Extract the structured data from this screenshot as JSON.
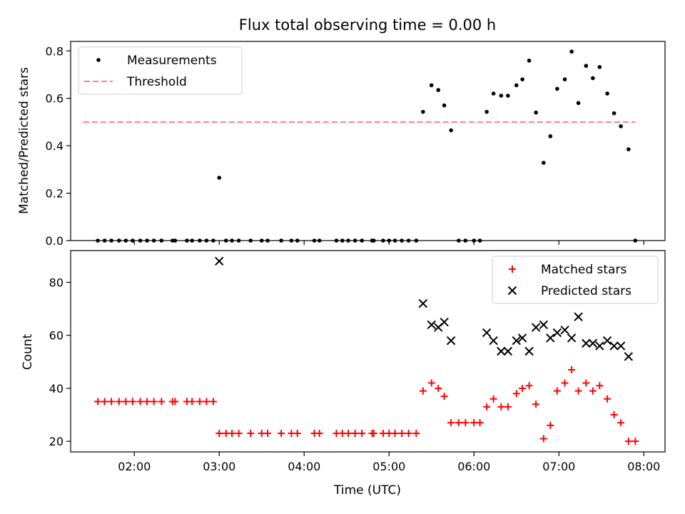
{
  "chart_data": [
    {
      "type": "scatter",
      "title": "Flux total observing time = 0.00 h",
      "xlabel": "",
      "ylabel": "Matched/Predicted stars",
      "xlim_hours": [
        1.25,
        8.25
      ],
      "ylim": [
        0,
        0.84
      ],
      "yticks": [
        0.0,
        0.2,
        0.4,
        0.6,
        0.8
      ],
      "ytick_labels": [
        "0.0",
        "0.2",
        "0.4",
        "0.6",
        "0.8"
      ],
      "legend_position": "top-left",
      "series": [
        {
          "name": "Measurements",
          "kind": "scatter",
          "marker": "dot",
          "color": "#000000",
          "points": [
            [
              1.57,
              0
            ],
            [
              1.65,
              0
            ],
            [
              1.73,
              0
            ],
            [
              1.82,
              0
            ],
            [
              1.9,
              0
            ],
            [
              1.98,
              0
            ],
            [
              2.07,
              0
            ],
            [
              2.15,
              0
            ],
            [
              2.23,
              0
            ],
            [
              2.32,
              0
            ],
            [
              2.45,
              0
            ],
            [
              2.48,
              0
            ],
            [
              2.62,
              0
            ],
            [
              2.68,
              0
            ],
            [
              2.77,
              0
            ],
            [
              2.85,
              0
            ],
            [
              2.93,
              0
            ],
            [
              3.0,
              0.265
            ],
            [
              3.08,
              0
            ],
            [
              3.15,
              0
            ],
            [
              3.23,
              0
            ],
            [
              3.37,
              0
            ],
            [
              3.5,
              0
            ],
            [
              3.57,
              0
            ],
            [
              3.73,
              0
            ],
            [
              3.85,
              0
            ],
            [
              3.92,
              0
            ],
            [
              4.12,
              0
            ],
            [
              4.18,
              0
            ],
            [
              4.38,
              0
            ],
            [
              4.45,
              0
            ],
            [
              4.52,
              0
            ],
            [
              4.6,
              0
            ],
            [
              4.68,
              0
            ],
            [
              4.8,
              0
            ],
            [
              4.82,
              0
            ],
            [
              4.93,
              0
            ],
            [
              5.0,
              0
            ],
            [
              5.07,
              0
            ],
            [
              5.15,
              0
            ],
            [
              5.23,
              0
            ],
            [
              5.32,
              0
            ],
            [
              5.4,
              0.543
            ],
            [
              5.5,
              0.655
            ],
            [
              5.58,
              0.635
            ],
            [
              5.65,
              0.57
            ],
            [
              5.73,
              0.465
            ],
            [
              5.82,
              0
            ],
            [
              5.9,
              0
            ],
            [
              6.0,
              0
            ],
            [
              6.07,
              0
            ],
            [
              6.15,
              0.543
            ],
            [
              6.23,
              0.62
            ],
            [
              6.32,
              0.611
            ],
            [
              6.4,
              0.611
            ],
            [
              6.5,
              0.655
            ],
            [
              6.57,
              0.68
            ],
            [
              6.65,
              0.759
            ],
            [
              6.73,
              0.54
            ],
            [
              6.82,
              0.328
            ],
            [
              6.9,
              0.44
            ],
            [
              6.98,
              0.64
            ],
            [
              7.07,
              0.68
            ],
            [
              7.15,
              0.797
            ],
            [
              7.23,
              0.58
            ],
            [
              7.32,
              0.737
            ],
            [
              7.4,
              0.685
            ],
            [
              7.48,
              0.732
            ],
            [
              7.57,
              0.62
            ],
            [
              7.65,
              0.537
            ],
            [
              7.73,
              0.482
            ],
            [
              7.82,
              0.385
            ],
            [
              7.9,
              0
            ]
          ]
        },
        {
          "name": "Threshold",
          "kind": "line",
          "style": "dashed",
          "color": "#ff7f7f",
          "points": [
            [
              1.4,
              0.5
            ],
            [
              7.9,
              0.5
            ]
          ]
        }
      ]
    },
    {
      "type": "scatter",
      "title": "",
      "xlabel": "Time (UTC)",
      "ylabel": "Count",
      "xlim_hours": [
        1.25,
        8.25
      ],
      "ylim": [
        16,
        92
      ],
      "yticks": [
        20,
        40,
        60,
        80
      ],
      "ytick_labels": [
        "20",
        "40",
        "60",
        "80"
      ],
      "xticks_hours": [
        2,
        3,
        4,
        5,
        6,
        7,
        8
      ],
      "xtick_labels": [
        "02:00",
        "03:00",
        "04:00",
        "05:00",
        "06:00",
        "07:00",
        "08:00"
      ],
      "legend_position": "top-right",
      "series": [
        {
          "name": "Matched stars",
          "kind": "scatter",
          "marker": "plus",
          "color": "#ff0000",
          "points": [
            [
              1.57,
              35
            ],
            [
              1.65,
              35
            ],
            [
              1.73,
              35
            ],
            [
              1.82,
              35
            ],
            [
              1.9,
              35
            ],
            [
              1.98,
              35
            ],
            [
              2.07,
              35
            ],
            [
              2.15,
              35
            ],
            [
              2.23,
              35
            ],
            [
              2.32,
              35
            ],
            [
              2.45,
              35
            ],
            [
              2.48,
              35
            ],
            [
              2.62,
              35
            ],
            [
              2.68,
              35
            ],
            [
              2.77,
              35
            ],
            [
              2.85,
              35
            ],
            [
              2.93,
              35
            ],
            [
              3.0,
              23
            ],
            [
              3.08,
              23
            ],
            [
              3.15,
              23
            ],
            [
              3.23,
              23
            ],
            [
              3.37,
              23
            ],
            [
              3.5,
              23
            ],
            [
              3.57,
              23
            ],
            [
              3.73,
              23
            ],
            [
              3.85,
              23
            ],
            [
              3.92,
              23
            ],
            [
              4.12,
              23
            ],
            [
              4.18,
              23
            ],
            [
              4.38,
              23
            ],
            [
              4.45,
              23
            ],
            [
              4.52,
              23
            ],
            [
              4.6,
              23
            ],
            [
              4.68,
              23
            ],
            [
              4.8,
              23
            ],
            [
              4.82,
              23
            ],
            [
              4.93,
              23
            ],
            [
              5.0,
              23
            ],
            [
              5.07,
              23
            ],
            [
              5.15,
              23
            ],
            [
              5.23,
              23
            ],
            [
              5.32,
              23
            ],
            [
              5.4,
              39
            ],
            [
              5.5,
              42
            ],
            [
              5.58,
              40
            ],
            [
              5.65,
              37
            ],
            [
              5.73,
              27
            ],
            [
              5.82,
              27
            ],
            [
              5.9,
              27
            ],
            [
              6.0,
              27
            ],
            [
              6.07,
              27
            ],
            [
              6.15,
              33
            ],
            [
              6.23,
              36
            ],
            [
              6.32,
              33
            ],
            [
              6.4,
              33
            ],
            [
              6.5,
              38
            ],
            [
              6.57,
              40
            ],
            [
              6.65,
              41
            ],
            [
              6.73,
              34
            ],
            [
              6.82,
              21
            ],
            [
              6.9,
              26
            ],
            [
              6.98,
              39
            ],
            [
              7.07,
              42
            ],
            [
              7.15,
              47
            ],
            [
              7.23,
              39
            ],
            [
              7.32,
              42
            ],
            [
              7.4,
              39
            ],
            [
              7.48,
              41
            ],
            [
              7.57,
              36
            ],
            [
              7.65,
              30
            ],
            [
              7.73,
              27
            ],
            [
              7.82,
              20
            ],
            [
              7.9,
              20
            ]
          ]
        },
        {
          "name": "Predicted stars",
          "kind": "scatter",
          "marker": "x",
          "color": "#000000",
          "points": [
            [
              3.0,
              88
            ],
            [
              5.4,
              72
            ],
            [
              5.5,
              64
            ],
            [
              5.58,
              63
            ],
            [
              5.65,
              65
            ],
            [
              5.73,
              58
            ],
            [
              6.15,
              61
            ],
            [
              6.23,
              58
            ],
            [
              6.32,
              54
            ],
            [
              6.4,
              54
            ],
            [
              6.5,
              58
            ],
            [
              6.57,
              59
            ],
            [
              6.65,
              54
            ],
            [
              6.73,
              63
            ],
            [
              6.82,
              64
            ],
            [
              6.9,
              59
            ],
            [
              6.98,
              61
            ],
            [
              7.07,
              62
            ],
            [
              7.15,
              59
            ],
            [
              7.23,
              67
            ],
            [
              7.32,
              57
            ],
            [
              7.4,
              57
            ],
            [
              7.48,
              56
            ],
            [
              7.57,
              58
            ],
            [
              7.65,
              56
            ],
            [
              7.73,
              56
            ],
            [
              7.82,
              52
            ]
          ]
        }
      ]
    }
  ]
}
